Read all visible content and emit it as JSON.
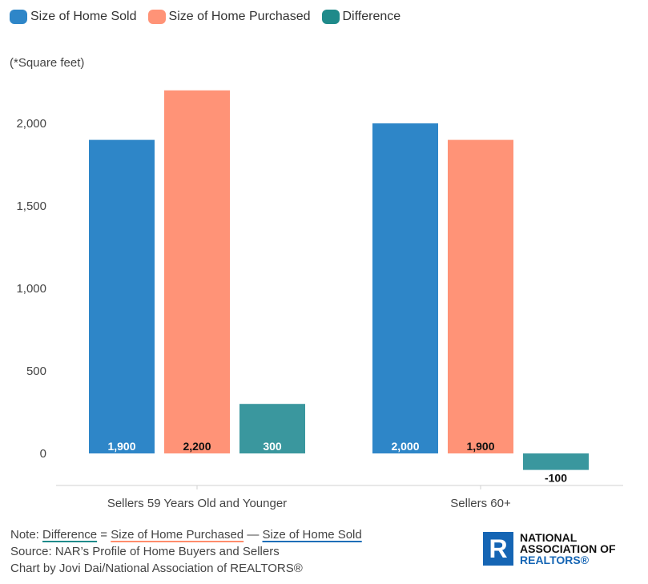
{
  "legend": [
    {
      "label": "Size of Home Sold",
      "color": "#2e86c8"
    },
    {
      "label": "Size of Home Purchased",
      "color": "#ff9377"
    },
    {
      "label": "Difference",
      "color": "#3a979e"
    }
  ],
  "unit_note": "(*Square feet)",
  "chart_data": {
    "type": "bar",
    "categories": [
      "Sellers 59 Years Old and Younger",
      "Sellers 60+"
    ],
    "series": [
      {
        "name": "Size of Home Sold",
        "values": [
          1900,
          2000
        ],
        "labels": [
          "1,900",
          "2,000"
        ],
        "color": "#2e86c8",
        "label_color": "#ffffff"
      },
      {
        "name": "Size of Home Purchased",
        "values": [
          2200,
          1900
        ],
        "labels": [
          "2,200",
          "1,900"
        ],
        "color": "#ff9377",
        "label_color": "#111111"
      },
      {
        "name": "Difference",
        "values": [
          300,
          -100
        ],
        "labels": [
          "300",
          "-100"
        ],
        "color": "#3a979e",
        "label_color": "#ffffff"
      }
    ],
    "yticks": [
      0,
      500,
      1000,
      1500,
      2000
    ],
    "ytick_labels": [
      "0",
      "500",
      "1,000",
      "1,500",
      "2,000"
    ],
    "ylim": [
      -200,
      2300
    ],
    "ylabel": "(*Square feet)",
    "xlabel": "",
    "grid": false,
    "legend_position": "top-left"
  },
  "footer": {
    "note_prefix": "Note: ",
    "note_difference": "Difference",
    "note_equals": " = ",
    "note_purchased": "Size of Home Purchased",
    "note_minus": " — ",
    "note_sold": "Size of Home Sold",
    "source": "Source: NAR’s Profile of Home Buyers and Sellers",
    "credit": "Chart by Jovi Dai/National Association of REALTORS®"
  },
  "logo": {
    "mark": "R",
    "line1": "NATIONAL",
    "line2": "ASSOCIATION OF",
    "line3": "REALTORS®"
  }
}
